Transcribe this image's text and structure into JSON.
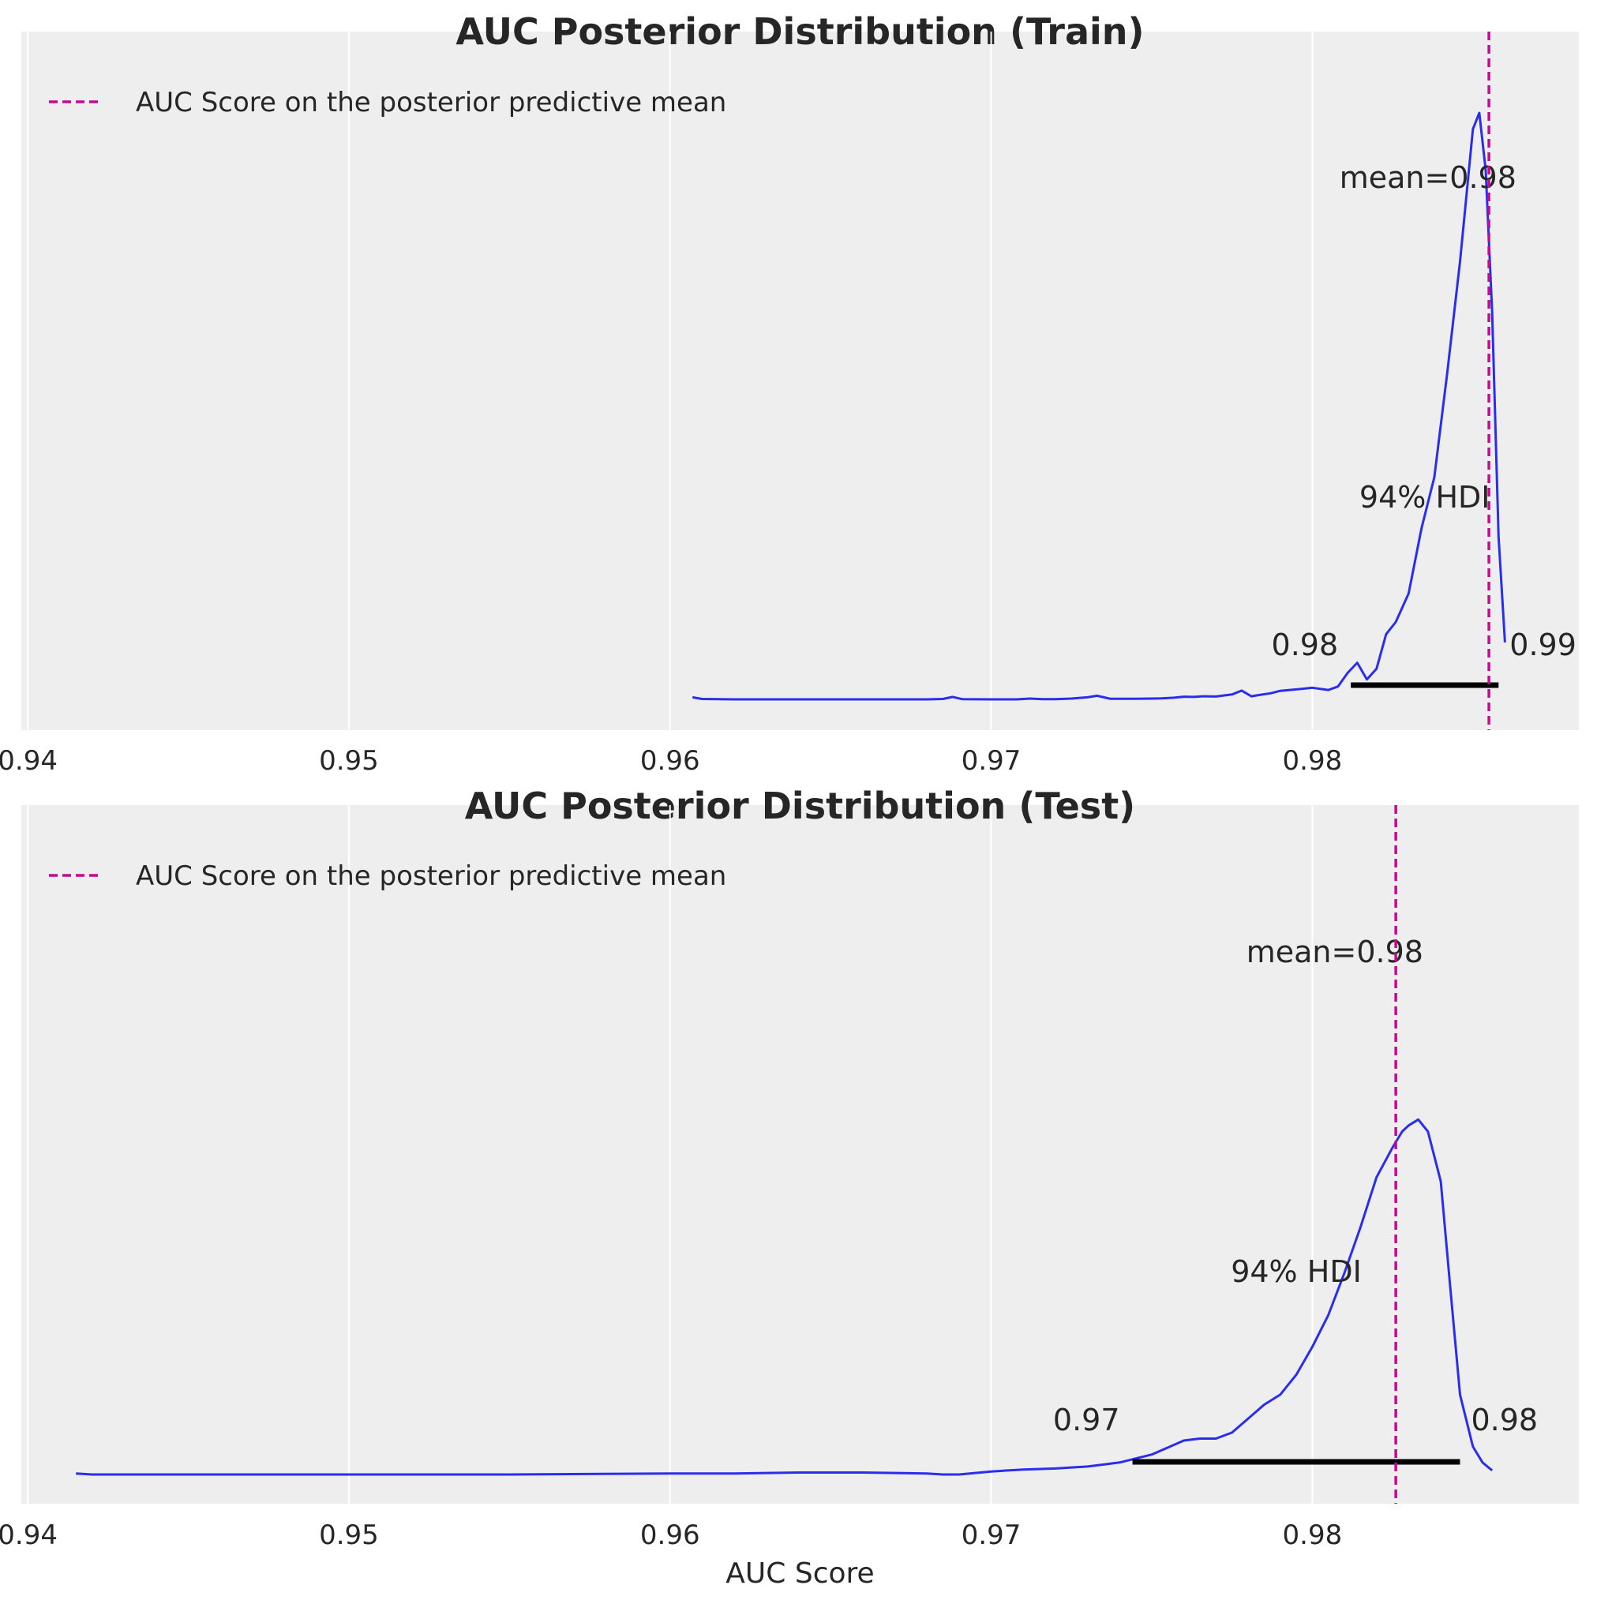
{
  "chart_data": [
    {
      "type": "line",
      "title": "AUC Posterior Distribution (Train)",
      "xlabel": "",
      "ylabel": "",
      "xlim": [
        0.9398,
        0.9883
      ],
      "x_ticks": [
        0.94,
        0.95,
        0.96,
        0.97,
        0.98
      ],
      "x_tick_labels": [
        "0.94",
        "0.95",
        "0.96",
        "0.97",
        "0.98"
      ],
      "grid": "vertical",
      "legend": {
        "position": "upper-left",
        "entries": [
          "AUC Score on the posterior predictive mean"
        ]
      },
      "colors": {
        "density": "#2a2eec",
        "reference_line": "#c10c90",
        "hdi": "#000000",
        "background": "#eeeeee"
      },
      "density_series": {
        "x": [
          0.9607,
          0.961,
          0.962,
          0.964,
          0.966,
          0.968,
          0.9685,
          0.9688,
          0.9691,
          0.97,
          0.9708,
          0.9712,
          0.9716,
          0.972,
          0.9725,
          0.973,
          0.9733,
          0.9737,
          0.9745,
          0.975,
          0.9753,
          0.9757,
          0.976,
          0.9763,
          0.9766,
          0.977,
          0.9775,
          0.9778,
          0.9781,
          0.9784,
          0.9787,
          0.979,
          0.9795,
          0.98,
          0.9805,
          0.9808,
          0.9811,
          0.9814,
          0.9817,
          0.982,
          0.9823,
          0.9826,
          0.983,
          0.9834,
          0.9838,
          0.9842,
          0.9846,
          0.985,
          0.9852,
          0.9854,
          0.9856,
          0.9858,
          0.986
        ],
        "density": [
          1.0,
          0.2,
          0.0,
          0.0,
          0.0,
          0.0,
          0.2,
          1.2,
          0.1,
          0.0,
          0.0,
          0.4,
          0.1,
          0.1,
          0.4,
          1.0,
          1.8,
          0.3,
          0.3,
          0.4,
          0.5,
          0.8,
          1.3,
          1.2,
          1.5,
          1.4,
          2.4,
          4.3,
          1.5,
          2.3,
          3.0,
          4.2,
          4.9,
          5.7,
          4.6,
          6.3,
          13.0,
          18.0,
          9.8,
          15.0,
          32.0,
          38.0,
          52.0,
          84.0,
          109.0,
          160.0,
          215.0,
          280.0,
          288.0,
          260.0,
          190.0,
          80.0,
          28.0
        ],
        "y_max": 300
      },
      "reference_line_x": 0.9855,
      "hdi": {
        "low": 0.9812,
        "high": 0.9858,
        "low_label": "0.98",
        "high_label": "0.99",
        "label": "94% HDI"
      },
      "mean_label": "mean=0.98"
    },
    {
      "type": "line",
      "title": "AUC Posterior Distribution (Test)",
      "xlabel": "AUC Score",
      "ylabel": "",
      "xlim": [
        0.9398,
        0.9883
      ],
      "x_ticks": [
        0.94,
        0.95,
        0.96,
        0.97,
        0.98
      ],
      "x_tick_labels": [
        "0.94",
        "0.95",
        "0.96",
        "0.97",
        "0.98"
      ],
      "grid": "vertical",
      "legend": {
        "position": "upper-left",
        "entries": [
          "AUC Score on the posterior predictive mean"
        ]
      },
      "colors": {
        "density": "#2a2eec",
        "reference_line": "#c10c90",
        "hdi": "#000000",
        "background": "#eeeeee"
      },
      "density_series": {
        "x": [
          0.9415,
          0.942,
          0.945,
          0.95,
          0.955,
          0.96,
          0.962,
          0.964,
          0.966,
          0.968,
          0.9685,
          0.969,
          0.97,
          0.971,
          0.972,
          0.973,
          0.974,
          0.975,
          0.976,
          0.9765,
          0.977,
          0.9775,
          0.978,
          0.9785,
          0.979,
          0.9795,
          0.98,
          0.9805,
          0.981,
          0.9815,
          0.982,
          0.9825,
          0.9828,
          0.983,
          0.9833,
          0.9836,
          0.984,
          0.9843,
          0.9846,
          0.985,
          0.9853,
          0.9856
        ],
        "density": [
          0.5,
          0.0,
          0.0,
          0.0,
          0.0,
          0.5,
          0.5,
          1.0,
          1.0,
          0.5,
          0.0,
          0.0,
          1.5,
          2.5,
          3.0,
          4.0,
          6.0,
          10.0,
          17.0,
          18.0,
          18.0,
          21.0,
          28.0,
          35.0,
          40.0,
          50.0,
          64.0,
          80.0,
          101.0,
          124.0,
          149.0,
          164.0,
          172.0,
          175.0,
          178.0,
          172.0,
          147.0,
          93.0,
          40.0,
          14.0,
          6.0,
          2.0
        ],
        "y_max": 300
      },
      "reference_line_x": 0.9826,
      "hdi": {
        "low": 0.9744,
        "high": 0.9846,
        "low_label": "0.97",
        "high_label": "0.98",
        "label": "94% HDI"
      },
      "mean_label": "mean=0.98"
    }
  ]
}
